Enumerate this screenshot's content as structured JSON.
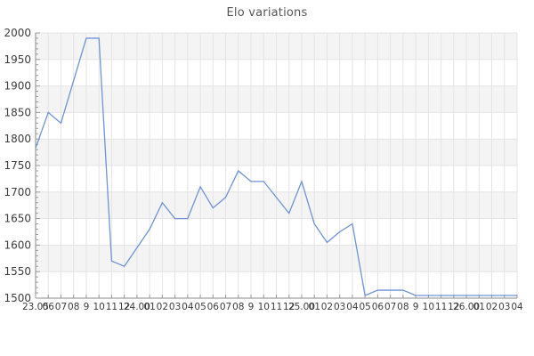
{
  "title": "Elo variations",
  "chart_data": {
    "type": "line",
    "title": "Elo variations",
    "xlabel": "",
    "ylabel": "",
    "legend": "none",
    "grid": true,
    "ylim": [
      1500,
      2000
    ],
    "y_tick_step": 50,
    "y_minor_tick_step": 10,
    "y_tick_labels": [
      "1500",
      "1550",
      "1600",
      "1650",
      "1700",
      "1750",
      "1800",
      "1850",
      "1900",
      "1950",
      "2000"
    ],
    "x_labels": [
      "23.05",
      "06",
      "07",
      "08",
      "9",
      "10",
      "11",
      "12",
      "24.00",
      "01",
      "02",
      "03",
      "04",
      "05",
      "06",
      "07",
      "08",
      "9",
      "10",
      "11",
      "12",
      "25.00",
      "01",
      "02",
      "03",
      "04",
      "05",
      "06",
      "07",
      "08",
      "9",
      "10",
      "11",
      "12",
      "26.00",
      "01",
      "02",
      "03",
      "04"
    ],
    "values": [
      1783,
      1850,
      1830,
      1910,
      1990,
      1990,
      1570,
      1560,
      1595,
      1630,
      1680,
      1650,
      1650,
      1710,
      1670,
      1690,
      1740,
      1720,
      1720,
      1690,
      1660,
      1720,
      1640,
      1605,
      1625,
      1640,
      1505,
      1515,
      1515,
      1515,
      1505,
      1505,
      1505,
      1505,
      1505,
      1505,
      1505,
      1505,
      1505
    ],
    "line_color": "#6e93d6",
    "band_color": "#f4f4f4",
    "grid_color": "#e4e4e4",
    "axis_color": "#8a8a8a",
    "tick_color": "#9a9a9a",
    "label_color": "#3c3c3c",
    "title_color": "#555555"
  }
}
